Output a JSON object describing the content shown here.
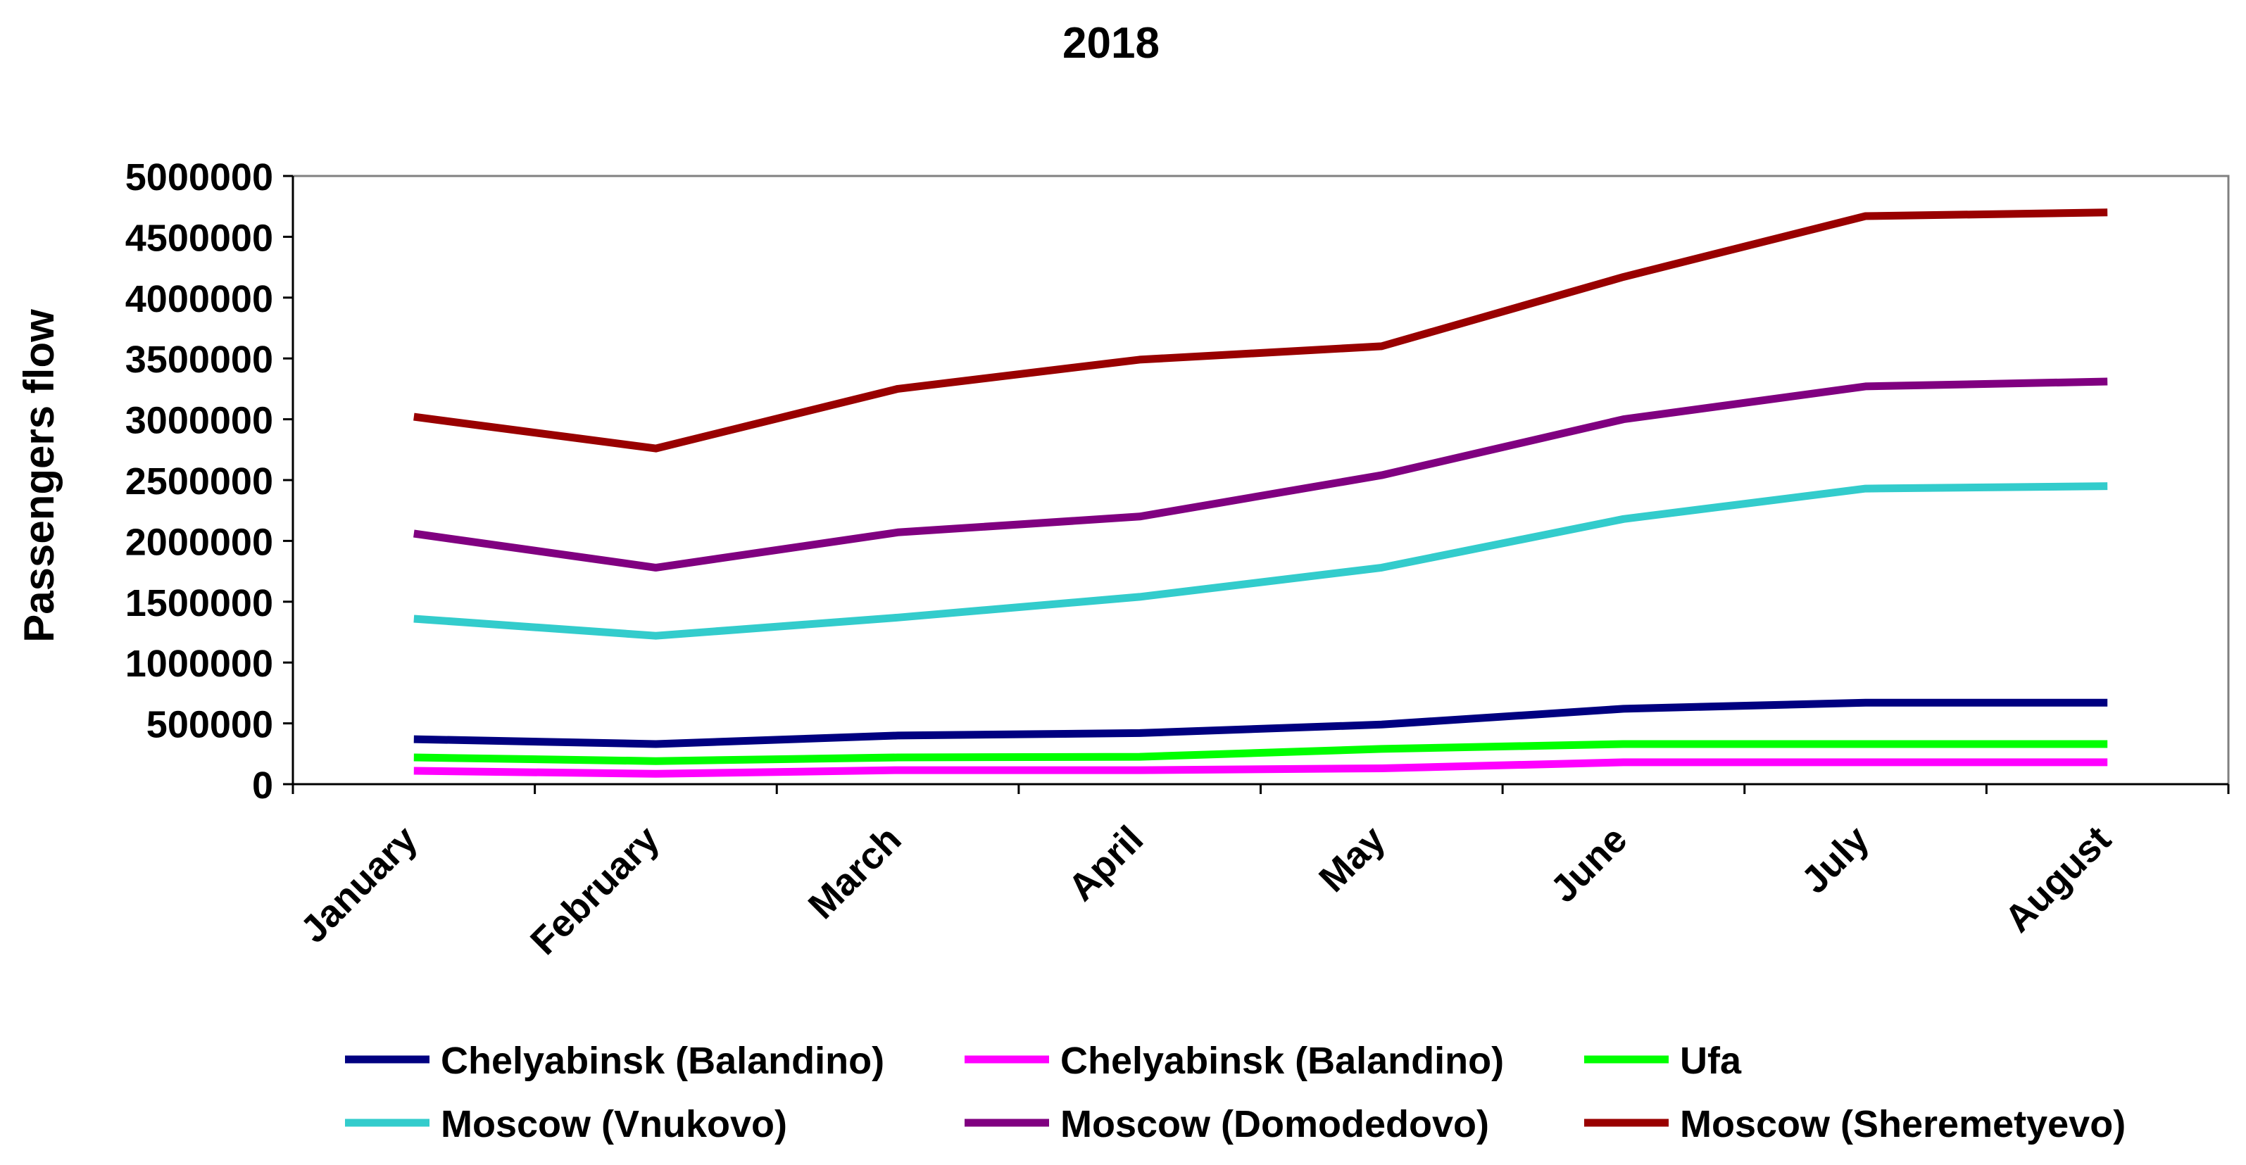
{
  "chart_data": {
    "type": "line",
    "title": "2018",
    "xlabel": "",
    "ylabel": "Passengers flow",
    "ylim": [
      0,
      5000000
    ],
    "y_ticks": [
      "0",
      "500000",
      "1000000",
      "1500000",
      "2000000",
      "2500000",
      "3000000",
      "3500000",
      "4000000",
      "4500000",
      "5000000"
    ],
    "categories": [
      "January",
      "February",
      "March",
      "April",
      "May",
      "June",
      "July",
      "August"
    ],
    "grid": false,
    "legend_position": "bottom",
    "series": [
      {
        "name": "Chelyabinsk (Balandino)",
        "color": "#000080",
        "values": [
          370000,
          330000,
          400000,
          420000,
          490000,
          620000,
          670000,
          670000
        ]
      },
      {
        "name": "Chelyabinsk (Balandino)",
        "color": "#FF00FF",
        "values": [
          110000,
          85000,
          115000,
          115000,
          130000,
          180000,
          180000,
          180000
        ]
      },
      {
        "name": "Ufa",
        "color": "#00FF00",
        "values": [
          220000,
          190000,
          220000,
          225000,
          290000,
          330000,
          330000,
          330000
        ]
      },
      {
        "name": "Moscow (Vnukovo)",
        "color": "#33CCCC",
        "values": [
          1360000,
          1220000,
          1370000,
          1540000,
          1780000,
          2180000,
          2430000,
          2450000
        ]
      },
      {
        "name": "Moscow (Domodedovo)",
        "color": "#800080",
        "values": [
          2060000,
          1780000,
          2070000,
          2200000,
          2540000,
          3000000,
          3270000,
          3310000
        ]
      },
      {
        "name": "Moscow (Sheremetyevo)",
        "color": "#990000",
        "values": [
          3020000,
          2760000,
          3250000,
          3490000,
          3600000,
          4170000,
          4670000,
          4700000
        ]
      }
    ]
  }
}
